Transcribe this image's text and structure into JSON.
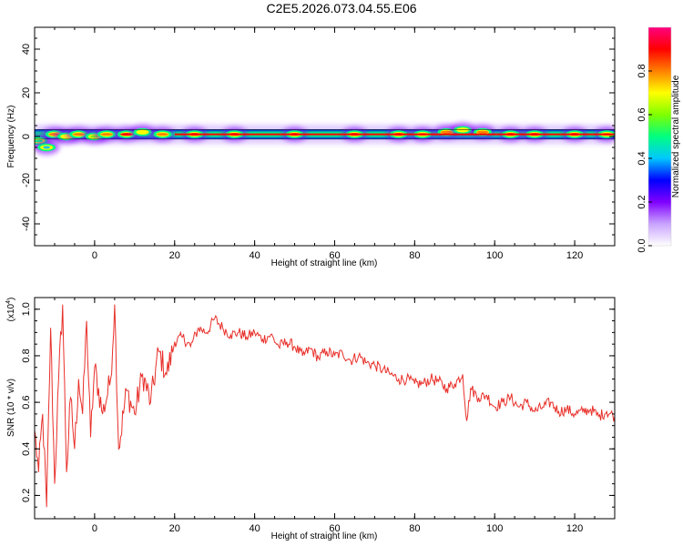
{
  "title": "C2E5.2026.073.04.55.E06",
  "chart_data": [
    {
      "type": "heatmap",
      "name": "spectrogram",
      "xlabel": "Height of straight line (km)",
      "ylabel": "Frequency (Hz)",
      "xlim": [
        -15,
        130
      ],
      "ylim": [
        -50,
        50
      ],
      "xticks": [
        "0",
        "20",
        "40",
        "60",
        "80",
        "100",
        "120"
      ],
      "yticks": [
        "-40",
        "-20",
        "0",
        "20",
        "40"
      ],
      "colorbar": {
        "label": "Normalized spectral amplitude",
        "range": [
          0,
          1
        ],
        "ticks": [
          "0.0",
          "0.2",
          "0.4",
          "0.6",
          "0.8"
        ],
        "colors": [
          "#ffffff",
          "#c9a3ff",
          "#8000ff",
          "#0000ff",
          "#00c8ff",
          "#00ff80",
          "#80ff00",
          "#ffff00",
          "#ff8000",
          "#ff0000",
          "#ff0080"
        ]
      },
      "band": {
        "center_frequency_hz": 1,
        "half_width_hz": 2,
        "blobs": [
          {
            "x": -14,
            "y": -2,
            "amp": 0.6
          },
          {
            "x": -12,
            "y": -5,
            "amp": 0.4
          },
          {
            "x": -10,
            "y": 1,
            "amp": 0.9
          },
          {
            "x": -7,
            "y": 0,
            "amp": 0.8
          },
          {
            "x": -4,
            "y": 1,
            "amp": 0.9
          },
          {
            "x": 0,
            "y": 0,
            "amp": 0.7
          },
          {
            "x": 3,
            "y": 1,
            "amp": 0.9
          },
          {
            "x": 8,
            "y": 1,
            "amp": 1.0
          },
          {
            "x": 12,
            "y": 2,
            "amp": 0.8
          },
          {
            "x": 17,
            "y": 1,
            "amp": 0.9
          },
          {
            "x": 25,
            "y": 1,
            "amp": 1.0
          },
          {
            "x": 35,
            "y": 1,
            "amp": 1.0
          },
          {
            "x": 50,
            "y": 1,
            "amp": 1.0
          },
          {
            "x": 65,
            "y": 1,
            "amp": 1.0
          },
          {
            "x": 76,
            "y": 1,
            "amp": 1.0
          },
          {
            "x": 82,
            "y": 1,
            "amp": 0.9
          },
          {
            "x": 88,
            "y": 2,
            "amp": 0.9
          },
          {
            "x": 92,
            "y": 3,
            "amp": 0.8
          },
          {
            "x": 97,
            "y": 2,
            "amp": 0.9
          },
          {
            "x": 104,
            "y": 1,
            "amp": 1.0
          },
          {
            "x": 110,
            "y": 1,
            "amp": 1.0
          },
          {
            "x": 120,
            "y": 1,
            "amp": 1.0
          },
          {
            "x": 128,
            "y": 1,
            "amp": 0.9
          }
        ]
      }
    },
    {
      "type": "line",
      "name": "snr",
      "xlabel": "Height of straight line (km)",
      "ylabel": "SNR (10 * v/v)",
      "multiplier_label": "(x10",
      "multiplier_exponent": "4",
      "multiplier_close": ")",
      "xlim": [
        -15,
        130
      ],
      "ylim": [
        0.1,
        1.05
      ],
      "xticks": [
        "0",
        "20",
        "40",
        "60",
        "80",
        "100",
        "120"
      ],
      "yticks": [
        "0.2",
        "0.4",
        "0.6",
        "0.8",
        "1.0"
      ],
      "color": "#e8302a",
      "x": [
        -15,
        -14,
        -13,
        -12,
        -11,
        -10,
        -9,
        -8,
        -7,
        -6,
        -5,
        -4,
        -3,
        -2,
        -1,
        0,
        2,
        4,
        5,
        6,
        8,
        10,
        12,
        14,
        16,
        18,
        20,
        22,
        24,
        26,
        28,
        30,
        32,
        34,
        36,
        38,
        40,
        42,
        44,
        46,
        48,
        50,
        52,
        54,
        56,
        58,
        60,
        62,
        64,
        66,
        68,
        70,
        72,
        74,
        76,
        78,
        80,
        82,
        84,
        86,
        88,
        90,
        92,
        93,
        94,
        96,
        98,
        100,
        102,
        104,
        106,
        108,
        110,
        112,
        114,
        116,
        118,
        120,
        122,
        124,
        126,
        128,
        130
      ],
      "y": [
        0.48,
        0.3,
        0.55,
        0.15,
        0.92,
        0.25,
        0.7,
        1.02,
        0.3,
        0.62,
        0.4,
        0.7,
        0.55,
        0.95,
        0.45,
        0.75,
        0.55,
        0.7,
        1.02,
        0.4,
        0.65,
        0.55,
        0.72,
        0.6,
        0.82,
        0.72,
        0.86,
        0.88,
        0.84,
        0.92,
        0.9,
        0.96,
        0.92,
        0.89,
        0.9,
        0.88,
        0.9,
        0.87,
        0.89,
        0.84,
        0.86,
        0.84,
        0.8,
        0.83,
        0.79,
        0.82,
        0.8,
        0.81,
        0.78,
        0.8,
        0.77,
        0.76,
        0.74,
        0.72,
        0.7,
        0.7,
        0.68,
        0.68,
        0.7,
        0.69,
        0.66,
        0.68,
        0.72,
        0.52,
        0.66,
        0.62,
        0.63,
        0.58,
        0.6,
        0.62,
        0.58,
        0.6,
        0.56,
        0.58,
        0.6,
        0.56,
        0.57,
        0.55,
        0.56,
        0.57,
        0.54,
        0.56,
        0.54
      ]
    }
  ]
}
